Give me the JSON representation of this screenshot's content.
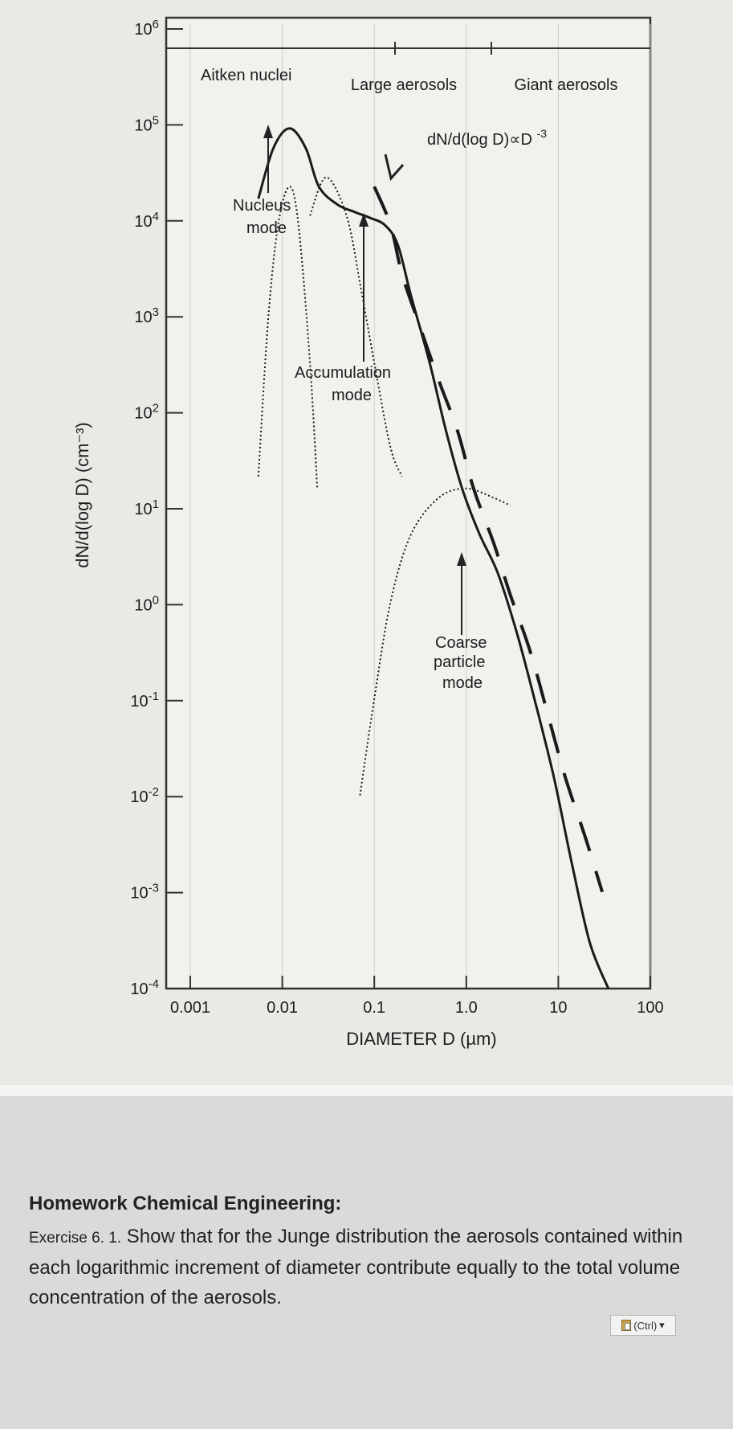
{
  "chart_data": {
    "type": "line",
    "xlabel": "DIAMETER D (µm)",
    "ylabel": "dN/d(log D) (cm⁻³)",
    "x_scale": "log",
    "y_scale": "log",
    "xlim": [
      0.001,
      100
    ],
    "ylim": [
      0.0001,
      1000000
    ],
    "x_tick_labels": [
      "0.001",
      "0.01",
      "0.1",
      "1.0",
      "10",
      "100"
    ],
    "y_tick_labels": [
      {
        "base": "10",
        "exp": "6"
      },
      {
        "base": "10",
        "exp": "5"
      },
      {
        "base": "10",
        "exp": "4"
      },
      {
        "base": "10",
        "exp": "3"
      },
      {
        "base": "10",
        "exp": "2"
      },
      {
        "base": "10",
        "exp": "1"
      },
      {
        "base": "10",
        "exp": "0"
      },
      {
        "base": "10",
        "exp": "-1"
      },
      {
        "base": "10",
        "exp": "-2"
      },
      {
        "base": "10",
        "exp": "-3"
      },
      {
        "base": "10",
        "exp": "-4"
      }
    ],
    "size_ranges": {
      "aitken": "Aitken nuclei",
      "large": "Large aerosols",
      "giant": "Giant aerosols"
    },
    "mode_labels": {
      "nucleus": [
        "Nucleus",
        "mode"
      ],
      "accumulation": [
        "Accumulation",
        "mode"
      ],
      "coarse": [
        "Coarse",
        "particle",
        "mode"
      ]
    },
    "junge_label": {
      "text": "dN/d(log D)∝D",
      "exp": "-3"
    },
    "grid": false,
    "series": [
      {
        "style": "solid",
        "x": [
          0.0055,
          0.008,
          0.012,
          0.018,
          0.025,
          0.04,
          0.06,
          0.09,
          0.13,
          0.18,
          0.25,
          0.4,
          0.6,
          0.9,
          1.4,
          2.2,
          3.5,
          5.5,
          9,
          14,
          22,
          35
        ],
        "y": [
          15000,
          50000,
          80000,
          50000,
          20000,
          13000,
          11000,
          9500,
          8000,
          5000,
          1500,
          300,
          60,
          15,
          5,
          2,
          0.5,
          0.1,
          0.015,
          0.002,
          0.0003,
          0.0001
        ]
      },
      {
        "style": "dashed",
        "x": [
          0.1,
          0.15,
          0.2,
          0.3,
          0.5,
          0.8,
          1.2,
          2,
          3,
          5,
          8,
          12,
          20,
          30
        ],
        "y": [
          20000,
          8000,
          2500,
          800,
          200,
          60,
          15,
          4,
          1.2,
          0.3,
          0.06,
          0.015,
          0.0035,
          0.001
        ]
      },
      {
        "style": "dotted",
        "x": [
          0.0055,
          0.007,
          0.009,
          0.012,
          0.015,
          0.02,
          0.024
        ],
        "y": [
          20,
          800,
          8000,
          20000,
          8000,
          300,
          15
        ]
      },
      {
        "style": "dotted",
        "x": [
          0.02,
          0.03,
          0.05,
          0.07,
          0.1,
          0.15,
          0.2
        ],
        "y": [
          10000,
          25000,
          10000,
          2000,
          300,
          40,
          20
        ]
      },
      {
        "style": "dotted",
        "x": [
          0.07,
          0.1,
          0.15,
          0.25,
          0.5,
          1.0,
          2,
          3
        ],
        "y": [
          0.01,
          0.1,
          1,
          5,
          12,
          15,
          12,
          10
        ]
      }
    ]
  },
  "homework": {
    "title": "Homework Chemical Engineering:",
    "exercise_label": "Exercise 6. 1.",
    "text": " Show that for the Junge distribution the aerosols contained within each logarithmic increment of diameter contribute equally to the total volume concentration of the aerosols."
  },
  "paste_button": {
    "label": "(Ctrl)",
    "arrow": "▾"
  }
}
